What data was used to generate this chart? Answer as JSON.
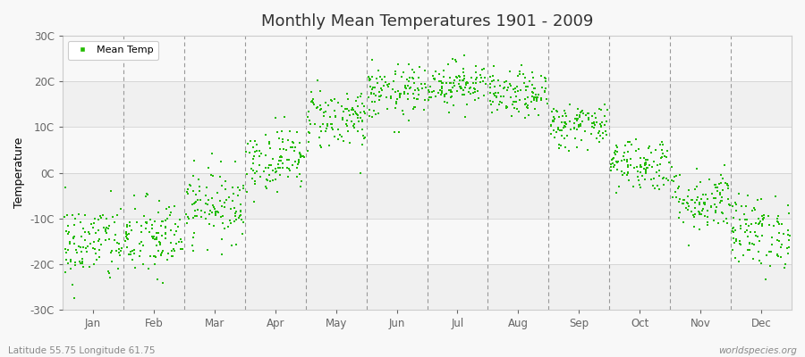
{
  "title": "Monthly Mean Temperatures 1901 - 2009",
  "ylabel": "Temperature",
  "xlabel_labels": [
    "Jan",
    "Feb",
    "Mar",
    "Apr",
    "May",
    "Jun",
    "Jul",
    "Aug",
    "Sep",
    "Oct",
    "Nov",
    "Dec"
  ],
  "subtitle_left": "Latitude 55.75 Longitude 61.75",
  "subtitle_right": "worldspecies.org",
  "legend_label": "Mean Temp",
  "dot_color": "#22bb00",
  "bg_color": "#f8f8f8",
  "band_colors": [
    "#f0f0f0",
    "#f8f8f8"
  ],
  "ylim": [
    -30,
    30
  ],
  "yticks": [
    -30,
    -20,
    -10,
    0,
    10,
    20,
    30
  ],
  "ytick_labels": [
    "-30C",
    "-20C",
    "-10C",
    "0C",
    "10C",
    "20C",
    "30C"
  ],
  "monthly_means": [
    -15.5,
    -14.5,
    -7.0,
    3.0,
    12.0,
    17.5,
    19.5,
    17.0,
    10.5,
    2.0,
    -6.0,
    -13.0
  ],
  "monthly_stds": [
    4.5,
    4.5,
    4.0,
    3.5,
    3.5,
    3.0,
    2.5,
    2.5,
    2.5,
    3.0,
    3.5,
    4.0
  ],
  "n_years": 109,
  "random_seed": 42,
  "marker_size": 3,
  "title_fontsize": 13,
  "axis_label_fontsize": 9,
  "tick_fontsize": 8.5,
  "legend_fontsize": 8
}
